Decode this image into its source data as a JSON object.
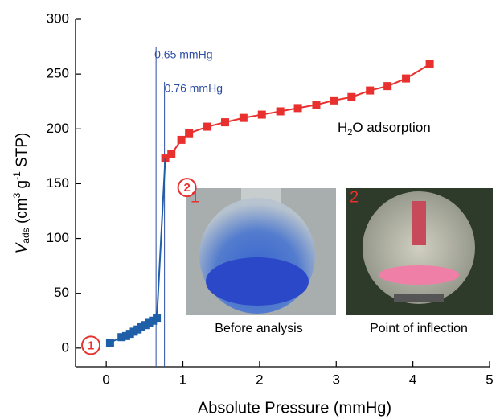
{
  "chart_data": {
    "type": "line",
    "x_label": "Absolute Pressure (mmHg)",
    "y_label_parts": [
      "V",
      "ads",
      " (cm",
      "3",
      " g",
      "-1",
      " STP)"
    ],
    "xlim": [
      -0.4,
      5
    ],
    "xticks": [
      0,
      1,
      2,
      3,
      4,
      5
    ],
    "ylim": [
      -17,
      300
    ],
    "yticks": [
      0,
      50,
      100,
      150,
      200,
      250,
      300
    ],
    "series": [
      {
        "color": "#1f5fa8",
        "x": [
          0.05,
          0.2,
          0.26,
          0.31,
          0.36,
          0.41,
          0.46,
          0.51,
          0.56,
          0.61,
          0.66
        ],
        "values": [
          5,
          10,
          11,
          13,
          15,
          17,
          19,
          21,
          23,
          25,
          27
        ]
      },
      {
        "color": "#e8302e",
        "x": [
          0.77,
          0.85,
          0.98,
          1.08,
          1.32,
          1.55,
          1.79,
          2.03,
          2.27,
          2.5,
          2.74,
          2.97,
          3.2,
          3.44,
          3.67,
          3.91,
          4.22
        ],
        "values": [
          173,
          177,
          190,
          196,
          202,
          206,
          210,
          213,
          216,
          219,
          222,
          226,
          229,
          235,
          239,
          246,
          259
        ]
      }
    ],
    "vlines": [
      {
        "x": 0.65,
        "label": "0.65 mmHg"
      },
      {
        "x": 0.76,
        "label": "0.76 mmHg"
      }
    ],
    "series_label_parts": [
      "H",
      "2",
      "O adsorption"
    ],
    "markers": [
      {
        "label": "1",
        "x": -0.2,
        "y": 4
      },
      {
        "label": "2",
        "x": 0.98,
        "y": 170
      }
    ],
    "photos": [
      {
        "number": "1",
        "caption": "Before analysis"
      },
      {
        "number": "2",
        "caption": "Point of inflection"
      }
    ]
  }
}
